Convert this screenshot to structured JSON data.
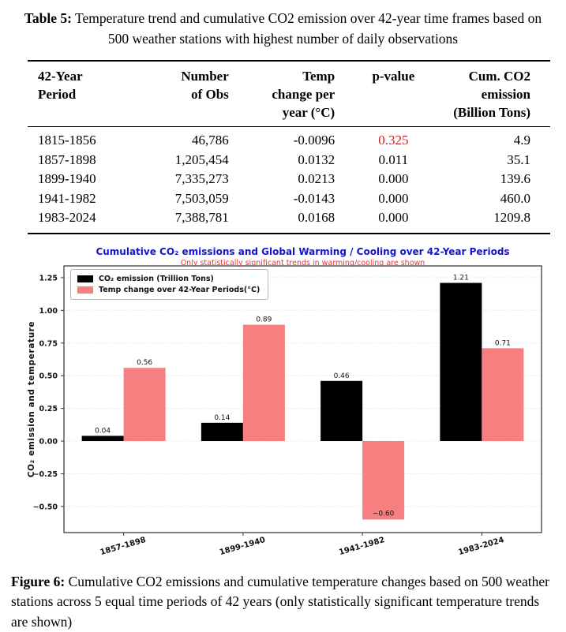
{
  "table_caption": {
    "label": "Table 5:",
    "text": "Temperature trend and cumulative CO2 emission over 42-year time frames based on 500 weather stations with highest number of daily observations"
  },
  "table": {
    "columns": [
      {
        "lines": [
          "42-Year",
          "Period"
        ],
        "align": "c0"
      },
      {
        "lines": [
          "Number",
          "of Obs"
        ],
        "align": "c1"
      },
      {
        "lines": [
          "Temp",
          "change per",
          "year (°C)"
        ],
        "align": "c2"
      },
      {
        "lines": [
          "p-value"
        ],
        "align": "c3"
      },
      {
        "lines": [
          "Cum. CO2",
          "emission",
          "(Billion Tons)"
        ],
        "align": "c4"
      }
    ],
    "rows": [
      {
        "cells": [
          "1815-1856",
          "46,786",
          "-0.0096",
          "0.325",
          "4.9"
        ],
        "red_cell": 3
      },
      {
        "cells": [
          "1857-1898",
          "1,205,454",
          "0.0132",
          "0.011",
          "35.1"
        ]
      },
      {
        "cells": [
          "1899-1940",
          "7,335,273",
          "0.0213",
          "0.000",
          "139.6"
        ]
      },
      {
        "cells": [
          "1941-1982",
          "7,503,059",
          "-0.0143",
          "0.000",
          "460.0"
        ]
      },
      {
        "cells": [
          "1983-2024",
          "7,388,781",
          "0.0168",
          "0.000",
          "1209.8"
        ]
      }
    ],
    "red_color": "#cc2222"
  },
  "chart_data": {
    "type": "bar",
    "title": "Cumulative CO₂ emissions and Global Warming / Cooling over 42-Year Periods",
    "subtitle": "Only statistically significant trends in warming/cooling are shown",
    "title_color": "#1414cc",
    "subtitle_color": "#ee3333",
    "ylabel": "CO₂ emission and temperature",
    "categories": [
      "1857-1898",
      "1899-1940",
      "1941-1982",
      "1983-2024"
    ],
    "series": [
      {
        "name": "CO₂ emission (Trillion Tons)",
        "color": "#000000",
        "values": [
          0.04,
          0.14,
          0.46,
          1.21
        ]
      },
      {
        "name": "Temp change over 42-Year Periods(°C)",
        "color": "#f87f7f",
        "values": [
          0.56,
          0.89,
          -0.6,
          0.71
        ]
      }
    ],
    "ylim": [
      -0.7,
      1.34
    ],
    "yticks": [
      1.25,
      1.0,
      0.75,
      0.5,
      0.25,
      0.0,
      -0.25,
      -0.5
    ],
    "grid": true,
    "legend_position": "upper left"
  },
  "figure_caption": {
    "label": "Figure 6:",
    "text": "Cumulative CO2 emissions and cumulative temperature changes based on 500 weather stations across 5 equal time periods of 42 years (only statistically significant temperature trends are shown)"
  }
}
